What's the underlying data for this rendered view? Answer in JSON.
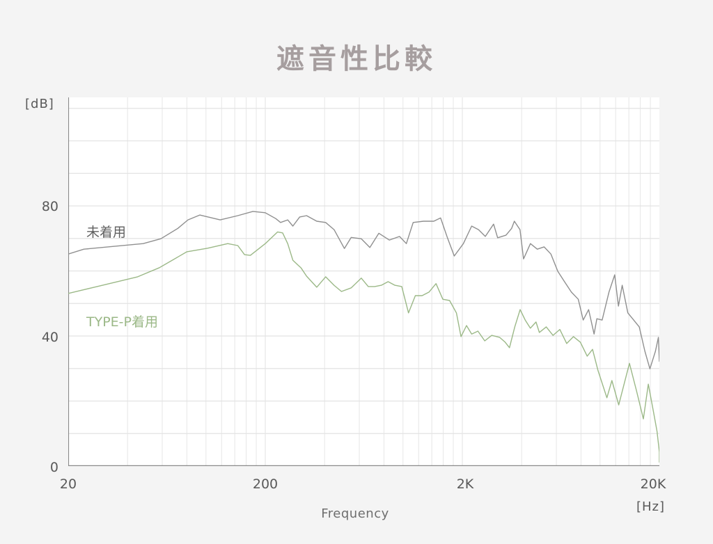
{
  "title": "遮音性比較",
  "axes": {
    "y_unit": "[dB]",
    "x_unit": "[Hz]",
    "x_title": "Frequency",
    "y_ticks": [
      {
        "value": 0,
        "label": "0"
      },
      {
        "value": 40,
        "label": "40"
      },
      {
        "value": 80,
        "label": "80"
      }
    ],
    "x_ticks": [
      {
        "value": 20,
        "label": "20"
      },
      {
        "value": 200,
        "label": "200"
      },
      {
        "value": 2000,
        "label": "2K"
      },
      {
        "value": 20000,
        "label": "20K"
      }
    ]
  },
  "legend": {
    "unworn": {
      "label": "未着用",
      "color": "#8f8f8f"
    },
    "typep": {
      "label": "TYPE-P着用",
      "color": "#9bb887"
    }
  },
  "chart_data": {
    "type": "line",
    "title": "遮音性比較",
    "xlabel": "Frequency",
    "xunit": "Hz",
    "ylabel": "dB",
    "xscale": "log",
    "xlim": [
      20,
      20000
    ],
    "ylim": [
      0,
      113
    ],
    "grid": true,
    "y_grid_step": 10,
    "x_tick_labels": [
      "20",
      "200",
      "2K",
      "20K"
    ],
    "y_tick_labels": [
      "0",
      "40",
      "80"
    ],
    "series": [
      {
        "name": "未着用",
        "color": "#8f8f8f",
        "points": [
          [
            20,
            65.2
          ],
          [
            24,
            66.7
          ],
          [
            48,
            68.4
          ],
          [
            59,
            69.9
          ],
          [
            72,
            73.1
          ],
          [
            81,
            75.7
          ],
          [
            93,
            77.2
          ],
          [
            118,
            75.7
          ],
          [
            145,
            77.0
          ],
          [
            173,
            78.3
          ],
          [
            200,
            77.9
          ],
          [
            226,
            76.1
          ],
          [
            239,
            74.9
          ],
          [
            260,
            75.7
          ],
          [
            276,
            73.8
          ],
          [
            299,
            76.6
          ],
          [
            324,
            77.0
          ],
          [
            365,
            75.3
          ],
          [
            405,
            74.9
          ],
          [
            447,
            72.7
          ],
          [
            504,
            66.9
          ],
          [
            546,
            70.3
          ],
          [
            614,
            69.9
          ],
          [
            679,
            67.2
          ],
          [
            754,
            71.6
          ],
          [
            852,
            69.5
          ],
          [
            960,
            70.6
          ],
          [
            1040,
            68.4
          ],
          [
            1126,
            74.9
          ],
          [
            1270,
            75.3
          ],
          [
            1433,
            75.3
          ],
          [
            1552,
            76.3
          ],
          [
            1681,
            70.2
          ],
          [
            1820,
            64.6
          ],
          [
            2025,
            68.4
          ],
          [
            2230,
            73.8
          ],
          [
            2415,
            72.7
          ],
          [
            2616,
            70.6
          ],
          [
            2881,
            74.4
          ],
          [
            3021,
            70.2
          ],
          [
            3330,
            71.0
          ],
          [
            3557,
            73.1
          ],
          [
            3673,
            75.3
          ],
          [
            3924,
            72.7
          ],
          [
            4089,
            63.7
          ],
          [
            4432,
            68.4
          ],
          [
            4800,
            66.7
          ],
          [
            5200,
            67.4
          ],
          [
            5630,
            65.2
          ],
          [
            6100,
            59.9
          ],
          [
            6600,
            56.7
          ],
          [
            7150,
            53.5
          ],
          [
            7750,
            51.3
          ],
          [
            8210,
            44.9
          ],
          [
            8750,
            48.1
          ],
          [
            9320,
            40.6
          ],
          [
            9630,
            45.3
          ],
          [
            10250,
            44.9
          ],
          [
            11100,
            53.5
          ],
          [
            11860,
            58.8
          ],
          [
            12400,
            49.2
          ],
          [
            12950,
            55.6
          ],
          [
            13830,
            47.1
          ],
          [
            14810,
            44.9
          ],
          [
            15810,
            42.8
          ],
          [
            16890,
            35.3
          ],
          [
            17900,
            29.9
          ],
          [
            19090,
            35.3
          ],
          [
            19780,
            39.6
          ],
          [
            20000,
            32.1
          ]
        ]
      },
      {
        "name": "TYPE-P着用",
        "color": "#9bb887",
        "points": [
          [
            20,
            53.1
          ],
          [
            28,
            55.2
          ],
          [
            45,
            58.2
          ],
          [
            58,
            61.0
          ],
          [
            80,
            65.9
          ],
          [
            102,
            67.0
          ],
          [
            129,
            68.4
          ],
          [
            145,
            67.8
          ],
          [
            157,
            65.0
          ],
          [
            168,
            64.8
          ],
          [
            200,
            68.4
          ],
          [
            231,
            72.0
          ],
          [
            245,
            71.7
          ],
          [
            260,
            68.4
          ],
          [
            276,
            63.3
          ],
          [
            304,
            60.9
          ],
          [
            324,
            58.4
          ],
          [
            365,
            55.0
          ],
          [
            405,
            58.2
          ],
          [
            447,
            55.6
          ],
          [
            487,
            53.7
          ],
          [
            546,
            54.8
          ],
          [
            614,
            57.8
          ],
          [
            666,
            55.2
          ],
          [
            718,
            55.2
          ],
          [
            776,
            55.6
          ],
          [
            840,
            56.7
          ],
          [
            910,
            55.6
          ],
          [
            985,
            55.2
          ],
          [
            1066,
            47.1
          ],
          [
            1155,
            52.4
          ],
          [
            1250,
            52.4
          ],
          [
            1355,
            53.5
          ],
          [
            1470,
            56.1
          ],
          [
            1592,
            51.3
          ],
          [
            1723,
            50.9
          ],
          [
            1867,
            47.1
          ],
          [
            1970,
            39.8
          ],
          [
            2100,
            43.2
          ],
          [
            2230,
            40.6
          ],
          [
            2400,
            41.5
          ],
          [
            2600,
            38.5
          ],
          [
            2820,
            40.2
          ],
          [
            3090,
            39.6
          ],
          [
            3300,
            38.1
          ],
          [
            3470,
            36.4
          ],
          [
            3690,
            42.8
          ],
          [
            3930,
            48.1
          ],
          [
            4170,
            44.9
          ],
          [
            4430,
            42.4
          ],
          [
            4730,
            44.3
          ],
          [
            4920,
            41.1
          ],
          [
            5330,
            42.8
          ],
          [
            5770,
            40.2
          ],
          [
            6250,
            42.0
          ],
          [
            6770,
            37.7
          ],
          [
            7330,
            39.8
          ],
          [
            7940,
            38.1
          ],
          [
            8600,
            33.8
          ],
          [
            9160,
            35.9
          ],
          [
            9750,
            29.5
          ],
          [
            10830,
            21.0
          ],
          [
            11480,
            26.3
          ],
          [
            12440,
            18.8
          ],
          [
            13240,
            25.2
          ],
          [
            14100,
            31.6
          ],
          [
            15320,
            23.1
          ],
          [
            16590,
            14.5
          ],
          [
            17570,
            25.2
          ],
          [
            18670,
            16.7
          ],
          [
            19460,
            10.7
          ],
          [
            20000,
            4.3
          ],
          [
            20000,
            1.1
          ]
        ]
      }
    ]
  }
}
